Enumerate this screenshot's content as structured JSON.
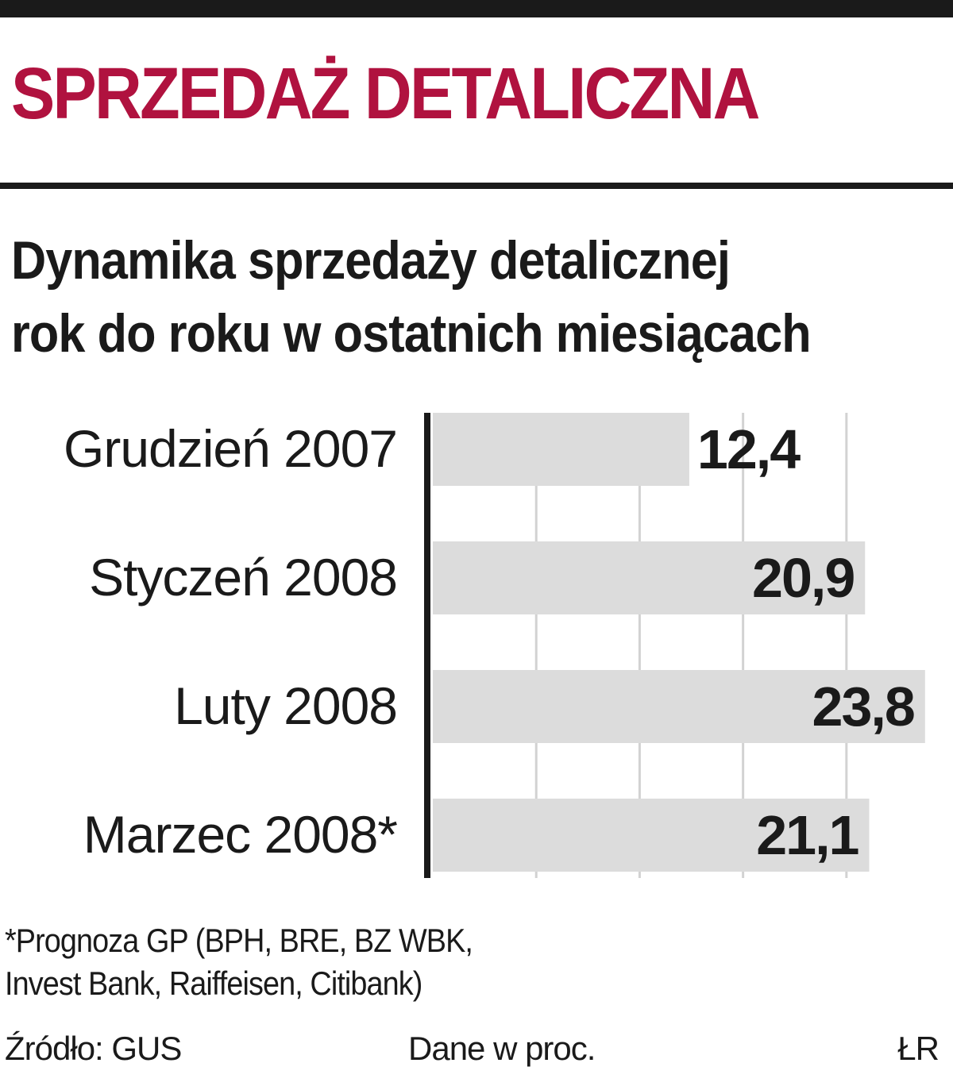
{
  "header": {
    "title": "SPRZEDAŻ DETALICZNA",
    "subtitle_line1": "Dynamika sprzedaży detalicznej",
    "subtitle_line2": "rok do roku w ostatnich miesiącach"
  },
  "colors": {
    "title": "#b0123f",
    "bar": "#dcdcdc",
    "axis": "#1a1a1a",
    "grid": "#d2d2d2",
    "text": "#1a1a1a"
  },
  "chart_data": {
    "type": "bar",
    "orientation": "horizontal",
    "categories": [
      "Grudzień 2007",
      "Styczeń 2008",
      "Luty 2008",
      "Marzec 2008*"
    ],
    "values": [
      12.4,
      20.9,
      23.8,
      21.1
    ],
    "value_labels": [
      "12,4",
      "20,9",
      "23,8",
      "21,1"
    ],
    "xlim": [
      0,
      24
    ],
    "grid_step": 5,
    "grid": true,
    "legend": "none"
  },
  "footer": {
    "note_line1": "*Prognoza GP (BPH, BRE, BZ WBK,",
    "note_line2": "Invest Bank, Raiffeisen, Citibank)",
    "source": "Źródło: GUS",
    "units": "Dane w proc.",
    "credit": "ŁR"
  }
}
